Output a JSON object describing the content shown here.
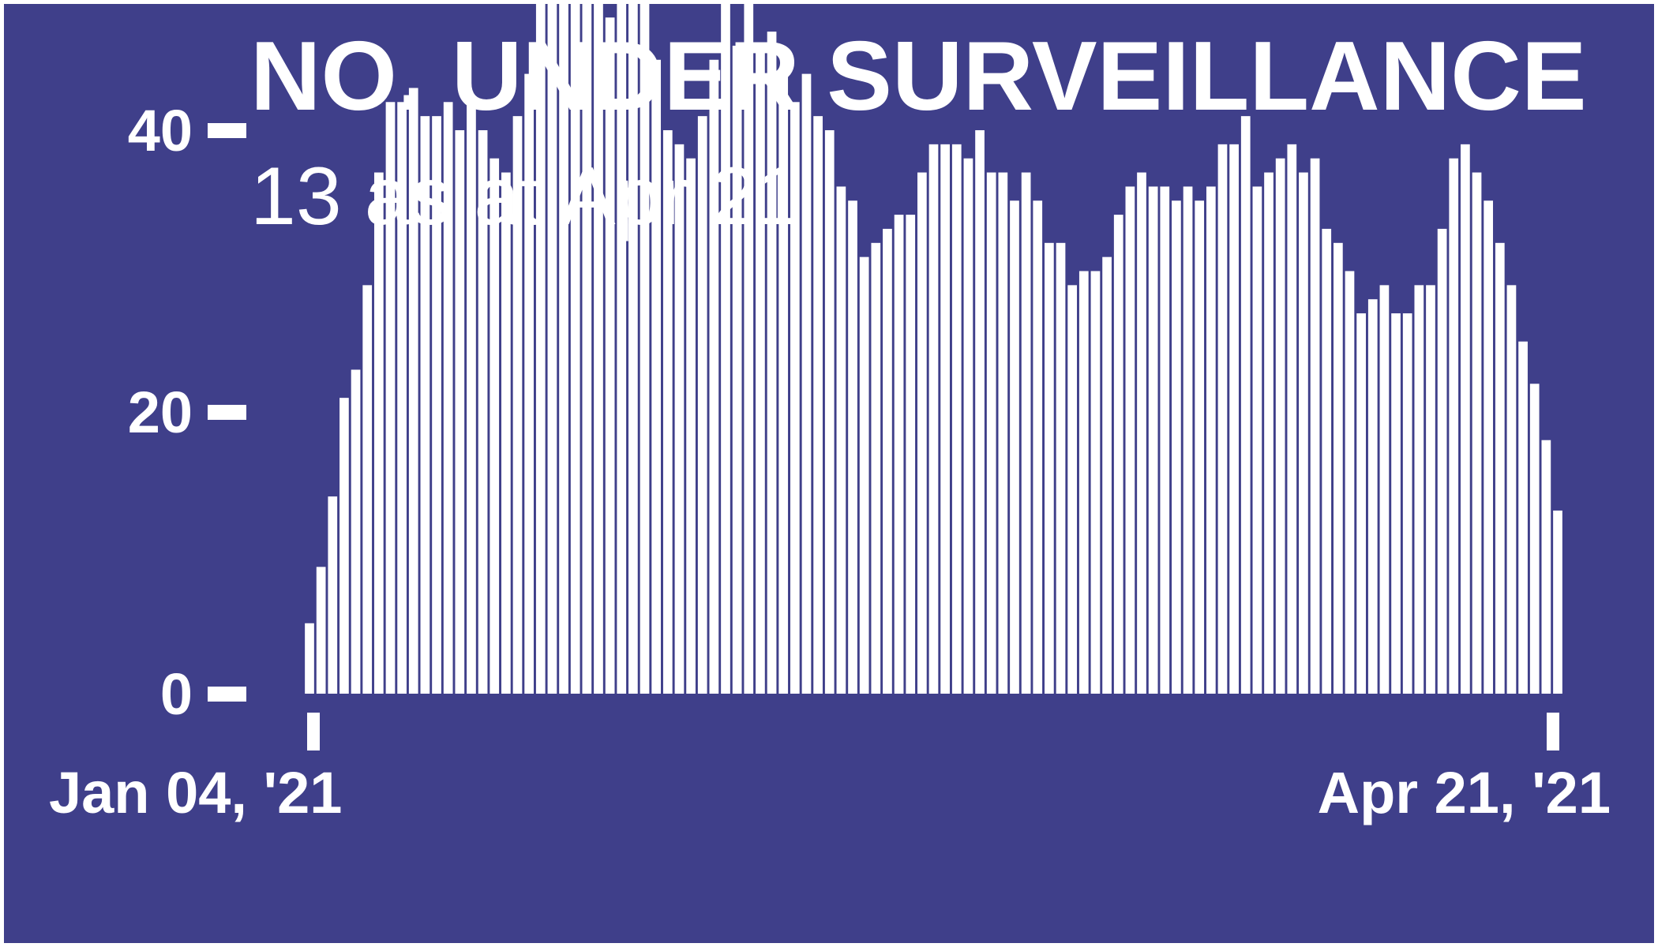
{
  "colors": {
    "background": "#3f3f8a",
    "foreground": "#ffffff"
  },
  "chart_data": {
    "type": "bar",
    "title": "NO. UNDER SURVEILLANCE",
    "subtitle": "13 as at Apr 21",
    "x_start_label": "Jan 04, '21",
    "x_end_label": "Apr 21, '21",
    "x_start": "2021-01-04",
    "x_end": "2021-04-21",
    "yticks": [
      0,
      20,
      40
    ],
    "ylim": [
      0,
      60
    ],
    "grid": false,
    "legend": "none",
    "values": [
      5,
      9,
      14,
      21,
      23,
      29,
      37,
      42,
      42,
      43,
      41,
      41,
      42,
      40,
      42,
      40,
      38,
      37,
      41,
      44,
      49,
      55,
      56,
      54,
      52,
      50,
      48,
      51,
      50,
      52,
      45,
      40,
      39,
      38,
      41,
      45,
      49,
      46,
      50,
      46,
      47,
      44,
      42,
      44,
      41,
      40,
      36,
      35,
      31,
      32,
      33,
      34,
      34,
      37,
      39,
      39,
      39,
      38,
      40,
      37,
      37,
      35,
      37,
      35,
      32,
      32,
      29,
      30,
      30,
      31,
      34,
      36,
      37,
      36,
      36,
      35,
      36,
      35,
      36,
      39,
      39,
      41,
      36,
      37,
      38,
      39,
      37,
      38,
      33,
      32,
      30,
      27,
      28,
      29,
      27,
      27,
      29,
      29,
      33,
      38,
      39,
      37,
      35,
      32,
      29,
      25,
      22,
      18,
      13
    ]
  }
}
